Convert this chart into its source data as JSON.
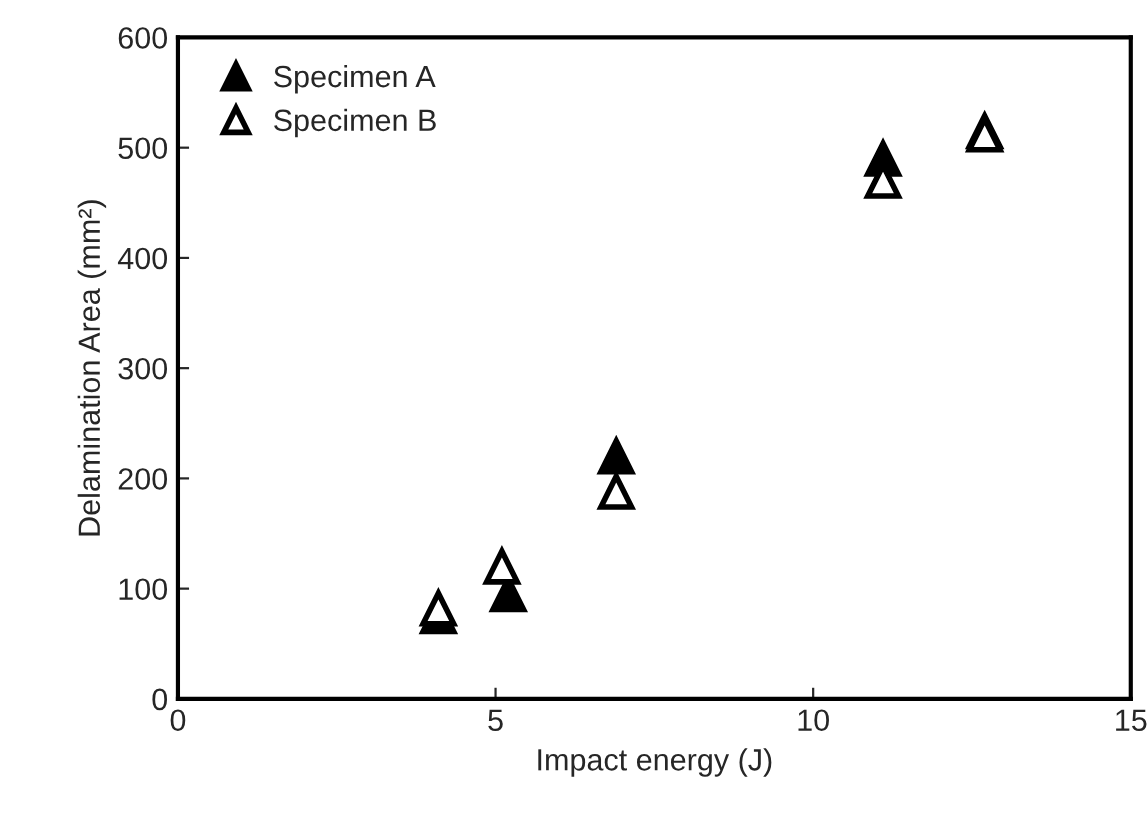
{
  "chart_data": {
    "type": "scatter",
    "xlabel": "Impact energy (J)",
    "ylabel": "Delamination Area (mm²)",
    "xlim": [
      0,
      15
    ],
    "xticks": [
      0,
      5,
      10,
      15
    ],
    "ylim": [
      0,
      600
    ],
    "yticks": [
      0,
      100,
      200,
      300,
      400,
      500,
      600
    ],
    "grid": false,
    "legend": "top left",
    "marker": "triangle",
    "series": [
      {
        "name": "Specimen A",
        "color": "#000000",
        "x": [
          4.1,
          5.2,
          6.9,
          11.1,
          12.7
        ],
        "values": [
          75,
          95,
          220,
          490,
          515
        ]
      },
      {
        "name": "Specimen B",
        "color": "#ffffff",
        "x": [
          4.1,
          5.1,
          6.9,
          11.1,
          12.7
        ],
        "values": [
          82,
          120,
          188,
          470,
          512
        ]
      }
    ]
  }
}
